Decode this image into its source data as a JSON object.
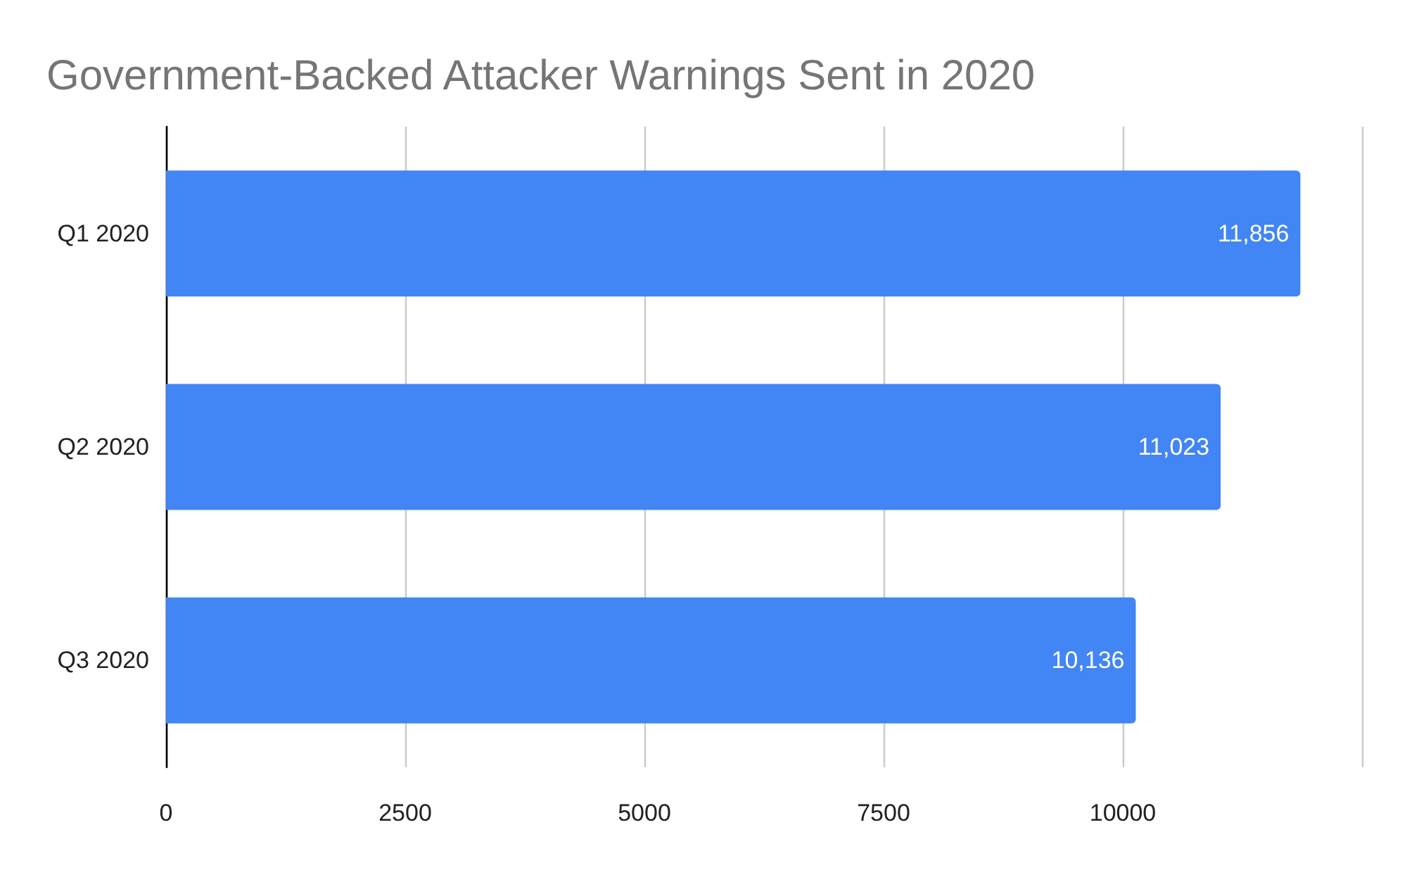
{
  "chart_data": {
    "type": "bar",
    "orientation": "horizontal",
    "title": "Government-Backed Attacker Warnings Sent in 2020",
    "categories": [
      "Q1 2020",
      "Q2 2020",
      "Q3 2020"
    ],
    "series": [
      {
        "color": "#4285f4",
        "values": [
          11856,
          11023,
          10136
        ],
        "value_labels": [
          "11,856",
          "11,023",
          "10,136"
        ]
      }
    ],
    "xlim": [
      0,
      12500
    ],
    "xticks": [
      0,
      2500,
      5000,
      7500,
      10000,
      {
        "value": 12500,
        "label": null
      }
    ],
    "grid": "x"
  }
}
